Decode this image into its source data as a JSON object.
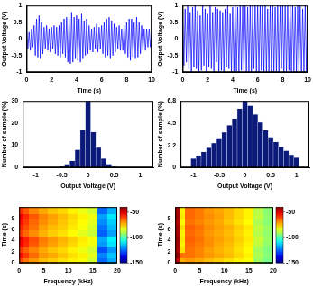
{
  "chart_data": [
    {
      "type": "line",
      "xlabel": "Time (s)",
      "ylabel": "Output Voltage (V)",
      "color": "#0000ff",
      "xlim": [
        0,
        10
      ],
      "xticks": [
        0,
        2,
        4,
        6,
        8,
        10
      ],
      "ylim": [
        -1,
        1
      ],
      "yticks": [
        -1,
        -0.5,
        0,
        0.5,
        1
      ],
      "grid": false,
      "x": [
        0,
        0.1,
        0.2,
        0.3,
        0.4,
        0.5,
        0.6,
        0.7,
        0.8,
        0.9,
        1,
        1.1,
        1.2,
        1.3,
        1.4,
        1.5,
        1.6,
        1.7,
        1.8,
        1.9,
        2,
        2.1,
        2.2,
        2.3,
        2.4,
        2.5,
        2.6,
        2.7,
        2.8,
        2.9,
        3,
        3.1,
        3.2,
        3.3,
        3.4,
        3.5,
        3.6,
        3.7,
        3.8,
        3.9,
        4,
        4.1,
        4.2,
        4.3,
        4.4,
        4.5,
        4.6,
        4.7,
        4.8,
        4.9,
        5,
        5.1,
        5.2,
        5.3,
        5.4,
        5.5,
        5.6,
        5.7,
        5.8,
        5.9,
        6,
        6.1,
        6.2,
        6.3,
        6.4,
        6.5,
        6.6,
        6.7,
        6.8,
        6.9,
        7,
        7.1,
        7.2,
        7.3,
        7.4,
        7.5,
        7.6,
        7.7,
        7.8,
        7.9,
        8,
        8.1,
        8.2,
        8.3,
        8.4,
        8.5,
        8.6,
        8.7,
        8.8,
        8.9,
        9,
        9.1,
        9.2,
        9.3,
        9.4,
        9.5,
        9.6,
        9.7,
        9.8,
        9.9,
        10
      ],
      "values": [
        0.25,
        -0.3,
        0.2,
        -0.35,
        0.3,
        -0.25,
        0.4,
        -0.5,
        0.6,
        -0.55,
        0.7,
        -0.6,
        0.5,
        -0.45,
        0.35,
        -0.3,
        0.4,
        -0.35,
        0.3,
        -0.4,
        0.35,
        -0.3,
        0.4,
        -0.45,
        0.35,
        -0.5,
        0.4,
        -0.55,
        0.5,
        -0.45,
        0.6,
        -0.55,
        0.65,
        -0.7,
        0.6,
        -0.75,
        0.8,
        -0.7,
        0.65,
        -0.6,
        0.7,
        -0.65,
        0.6,
        -0.7,
        0.75,
        -0.6,
        0.55,
        -0.5,
        0.6,
        -0.45,
        0.4,
        -0.35,
        0.3,
        -0.4,
        0.35,
        -0.3,
        0.45,
        -0.4,
        0.35,
        -0.3,
        0.4,
        -0.45,
        0.5,
        -0.55,
        0.6,
        -0.5,
        0.65,
        -0.6,
        0.55,
        -0.5,
        0.45,
        -0.4,
        0.35,
        -0.3,
        0.4,
        -0.35,
        0.3,
        -0.35,
        0.4,
        -0.45,
        0.5,
        -0.55,
        0.6,
        -0.65,
        0.6,
        -0.55,
        0.5,
        -0.6,
        0.65,
        -0.55,
        0.5,
        -0.45,
        0.4,
        -0.35,
        0.3,
        -0.35,
        0.3,
        -0.25,
        0.3,
        -0.25,
        0.2
      ]
    },
    {
      "type": "line",
      "xlabel": "Time (s)",
      "ylabel": "Output Voltage (V)",
      "color": "#0000ff",
      "xlim": [
        0,
        10
      ],
      "xticks": [
        0,
        2,
        4,
        6,
        8,
        10
      ],
      "ylim": [
        -1,
        1
      ],
      "yticks": [
        -1,
        -0.5,
        0,
        0.5,
        1
      ],
      "grid": false,
      "x": [
        0,
        0.1,
        0.2,
        0.3,
        0.4,
        0.5,
        0.6,
        0.7,
        0.8,
        0.9,
        1,
        1.1,
        1.2,
        1.3,
        1.4,
        1.5,
        1.6,
        1.7,
        1.8,
        1.9,
        2,
        2.1,
        2.2,
        2.3,
        2.4,
        2.5,
        2.6,
        2.7,
        2.8,
        2.9,
        3,
        3.1,
        3.2,
        3.3,
        3.4,
        3.5,
        3.6,
        3.7,
        3.8,
        3.9,
        4,
        4.1,
        4.2,
        4.3,
        4.4,
        4.5,
        4.6,
        4.7,
        4.8,
        4.9,
        5,
        5.1,
        5.2,
        5.3,
        5.4,
        5.5,
        5.6,
        5.7,
        5.8,
        5.9,
        6,
        6.1,
        6.2,
        6.3,
        6.4,
        6.5,
        6.6,
        6.7,
        6.8,
        6.9,
        7,
        7.1,
        7.2,
        7.3,
        7.4,
        7.5,
        7.6,
        7.7,
        7.8,
        7.9,
        8,
        8.1,
        8.2,
        8.3,
        8.4,
        8.5,
        8.6,
        8.7,
        8.8,
        8.9,
        9,
        9.1,
        9.2,
        9.3,
        9.4,
        9.5,
        9.6,
        9.7,
        9.8,
        9.9,
        10
      ],
      "values": [
        0.6,
        -0.8,
        0.9,
        -0.7,
        1,
        -0.9,
        0.8,
        -1,
        0.95,
        -0.85,
        1,
        -0.9,
        0.85,
        -1,
        0.7,
        -0.95,
        1,
        -0.8,
        0.9,
        -1,
        0.75,
        -0.85,
        1,
        -0.9,
        0.8,
        -1,
        0.95,
        -0.7,
        0.9,
        -1,
        0.85,
        -0.95,
        0.8,
        -1,
        0.9,
        -0.85,
        1,
        -0.9,
        0.75,
        -1,
        0.95,
        -1,
        1,
        -1,
        0.95,
        -1,
        1,
        -0.95,
        1,
        -1,
        1,
        -1,
        0.95,
        -1,
        1,
        -1,
        1,
        -0.9,
        1,
        -1,
        1,
        -1,
        1,
        -0.95,
        1,
        -1,
        1,
        -1,
        0.9,
        -1,
        1,
        -1,
        1,
        -1,
        0.95,
        -1,
        1,
        -1,
        1,
        -0.9,
        1,
        -1,
        1,
        -1,
        1,
        -0.95,
        1,
        -1,
        1,
        -1,
        0.95,
        -1,
        1,
        -1,
        1,
        -1,
        0.9,
        -1,
        1,
        -1,
        1
      ]
    },
    {
      "type": "histogram",
      "xlabel": "Output Voltage (V)",
      "ylabel": "Number of sample (%)",
      "color": "#0b1a78",
      "xlim": [
        -1,
        1
      ],
      "xticks": [
        -1,
        -0.5,
        0,
        0.5,
        1
      ],
      "ylim": [
        0,
        30
      ],
      "yticks": [
        0,
        10,
        20,
        30
      ],
      "grid": false,
      "bins": [
        -1.05,
        -0.95,
        -0.85,
        -0.75,
        -0.65,
        -0.55,
        -0.45,
        -0.35,
        -0.25,
        -0.15,
        -0.05,
        0.05,
        0.15,
        0.25,
        0.35,
        0.45,
        0.55,
        0.65,
        0.75,
        0.85,
        0.95,
        1.05
      ],
      "values": [
        0,
        0,
        0,
        0,
        0,
        0.5,
        1.5,
        3,
        8,
        17,
        30,
        16,
        9,
        4,
        1.5,
        0.5,
        0,
        0,
        0,
        0,
        0
      ]
    },
    {
      "type": "histogram",
      "xlabel": "Output Voltage (V)",
      "ylabel": "Number of sample (%)",
      "color": "#0b1a78",
      "xlim": [
        -1,
        1
      ],
      "xticks": [
        -1,
        -0.5,
        0,
        0.5,
        1
      ],
      "ylim": [
        0,
        6.8
      ],
      "yticks": [
        0,
        2.2,
        4.5,
        6.8
      ],
      "grid": false,
      "bins": [
        -1.05,
        -0.95,
        -0.85,
        -0.75,
        -0.65,
        -0.55,
        -0.45,
        -0.35,
        -0.25,
        -0.15,
        -0.05,
        0.05,
        0.15,
        0.25,
        0.35,
        0.45,
        0.55,
        0.65,
        0.75,
        0.85,
        0.95,
        1.05
      ],
      "values": [
        0.9,
        1.2,
        1.6,
        2.0,
        2.5,
        3.0,
        3.6,
        4.3,
        5.0,
        6.0,
        6.8,
        6.3,
        5.4,
        4.6,
        3.8,
        3.1,
        2.6,
        2.1,
        1.7,
        1.3,
        1.0
      ]
    },
    {
      "type": "heatmap",
      "xlabel": "Frequency (kHz)",
      "ylabel": "Time (s)",
      "xlim": [
        0,
        20
      ],
      "xticks": [
        0,
        5,
        10,
        15,
        20
      ],
      "ylim": [
        0,
        10
      ],
      "yticks": [
        0,
        2,
        4,
        6,
        8
      ],
      "x_bins": [
        0,
        1,
        2,
        4,
        6,
        8,
        10,
        12,
        14,
        16,
        18,
        20
      ],
      "y_bins": [
        0,
        1,
        2,
        3,
        4,
        5,
        6,
        7,
        8,
        9,
        10
      ],
      "cells": [
        [
          -62,
          -66,
          -70,
          -74,
          -76,
          -78,
          -80,
          -82,
          -86,
          -125,
          -118
        ],
        [
          -55,
          -60,
          -65,
          -70,
          -72,
          -75,
          -78,
          -80,
          -84,
          -122,
          -115
        ],
        [
          -60,
          -64,
          -68,
          -72,
          -75,
          -77,
          -80,
          -83,
          -86,
          -128,
          -120
        ],
        [
          -54,
          -58,
          -63,
          -68,
          -71,
          -74,
          -77,
          -80,
          -83,
          -120,
          -112
        ],
        [
          -52,
          -57,
          -62,
          -67,
          -70,
          -73,
          -76,
          -79,
          -82,
          -118,
          -110
        ],
        [
          -60,
          -65,
          -69,
          -73,
          -76,
          -78,
          -81,
          -84,
          -87,
          -126,
          -119
        ],
        [
          -58,
          -62,
          -66,
          -71,
          -74,
          -76,
          -79,
          -82,
          -85,
          -124,
          -116
        ],
        [
          -55,
          -60,
          -65,
          -69,
          -72,
          -75,
          -78,
          -81,
          -84,
          -121,
          -114
        ],
        [
          -53,
          -58,
          -63,
          -68,
          -71,
          -74,
          -77,
          -80,
          -83,
          -119,
          -111
        ],
        [
          -59,
          -63,
          -68,
          -72,
          -75,
          -77,
          -80,
          -83,
          -86,
          -125,
          -117
        ]
      ],
      "colorbar": {
        "range": [
          -150,
          -40
        ],
        "ticks": [
          -50,
          -100,
          -150
        ]
      }
    },
    {
      "type": "heatmap",
      "xlabel": "Frequency (kHz)",
      "ylabel": "Time (s)",
      "xlim": [
        0,
        20
      ],
      "xticks": [
        0,
        5,
        10,
        15,
        20
      ],
      "ylim": [
        0,
        10
      ],
      "yticks": [
        0,
        2,
        4,
        6,
        8
      ],
      "x_bins": [
        0,
        1,
        2,
        4,
        6,
        8,
        10,
        12,
        14,
        16,
        18,
        20
      ],
      "y_bins": [
        0,
        1,
        2,
        3,
        4,
        5,
        6,
        7,
        8,
        9,
        10
      ],
      "cells": [
        [
          -48,
          -72,
          -70,
          -72,
          -74,
          -76,
          -78,
          -80,
          -82,
          -92,
          -96
        ],
        [
          -42,
          -66,
          -66,
          -68,
          -70,
          -72,
          -74,
          -77,
          -80,
          -90,
          -94
        ],
        [
          -45,
          -78,
          -66,
          -68,
          -71,
          -73,
          -75,
          -78,
          -81,
          -91,
          -95
        ],
        [
          -44,
          -80,
          -65,
          -67,
          -69,
          -72,
          -74,
          -77,
          -80,
          -88,
          -93
        ],
        [
          -43,
          -79,
          -64,
          -66,
          -69,
          -71,
          -73,
          -76,
          -79,
          -87,
          -92
        ],
        [
          -45,
          -80,
          -65,
          -67,
          -70,
          -72,
          -74,
          -77,
          -80,
          -89,
          -93
        ],
        [
          -44,
          -78,
          -64,
          -66,
          -69,
          -71,
          -73,
          -76,
          -79,
          -88,
          -92
        ],
        [
          -46,
          -81,
          -66,
          -68,
          -70,
          -72,
          -75,
          -78,
          -81,
          -90,
          -94
        ],
        [
          -44,
          -79,
          -65,
          -67,
          -69,
          -71,
          -74,
          -77,
          -80,
          -88,
          -93
        ],
        [
          -45,
          -80,
          -65,
          -67,
          -70,
          -72,
          -74,
          -77,
          -80,
          -89,
          -94
        ]
      ],
      "colorbar": {
        "range": [
          -150,
          -40
        ],
        "ticks": [
          -50,
          -100,
          -150
        ]
      }
    }
  ]
}
